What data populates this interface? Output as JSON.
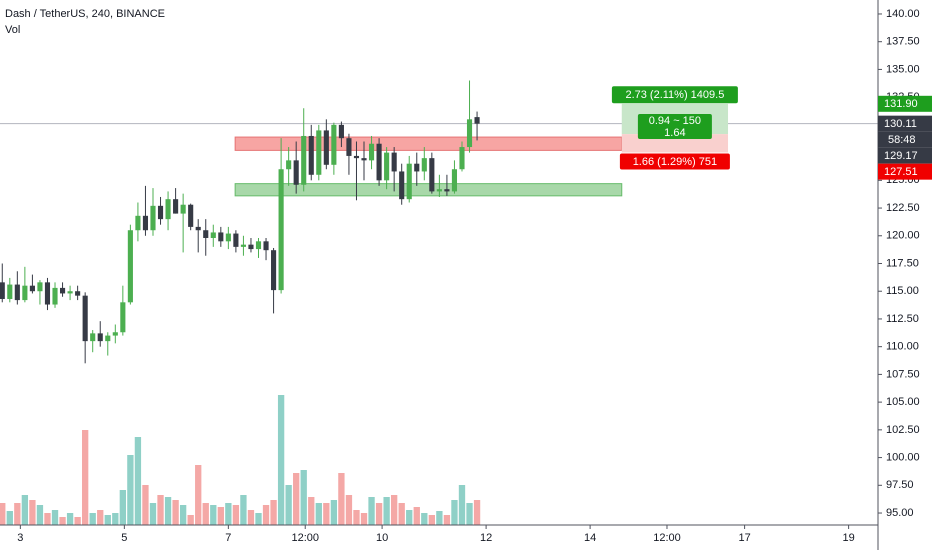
{
  "chart_data": {
    "type": "candlestick",
    "title": "Dash / TetherUS, 240, BINANCE",
    "volume_title": "Vol",
    "up_color": "#4caf50",
    "down_color": "#363a45",
    "volume_up_color": "#8fd0c7",
    "volume_down_color": "#f4a8a6",
    "x": [
      0,
      1,
      2,
      3,
      4,
      5,
      6,
      7,
      8,
      9,
      10,
      11,
      12,
      13,
      14,
      15,
      16,
      17,
      18,
      19,
      20,
      21,
      22,
      23,
      24,
      25,
      26,
      27,
      28,
      29,
      30,
      31,
      32,
      33,
      34,
      35,
      36,
      37,
      38,
      39,
      40,
      41,
      42,
      43,
      44,
      45,
      46,
      47,
      48,
      49,
      50,
      51,
      52,
      53,
      54,
      55,
      56,
      57,
      58,
      59,
      60,
      61,
      62,
      63
    ],
    "open": [
      115.8,
      114.3,
      115.6,
      114.2,
      115.5,
      115.0,
      115.8,
      113.8,
      115.3,
      114.8,
      115.0,
      114.6,
      110.5,
      111.2,
      110.5,
      111.0,
      111.3,
      114.0,
      120.5,
      121.8,
      120.5,
      122.7,
      121.5,
      123.3,
      122.0,
      122.8,
      120.8,
      120.5,
      119.8,
      120.3,
      119.5,
      120.2,
      119.0,
      119.2,
      118.8,
      119.5,
      118.7,
      115.1,
      126.0,
      126.8,
      124.6,
      129.0,
      125.5,
      129.5,
      126.4,
      130.0,
      128.8,
      127.2,
      127.0,
      126.8,
      128.3,
      125.0,
      127.5,
      125.8,
      123.3,
      126.5,
      125.8,
      127.0,
      124.0,
      124.2,
      124.0,
      126.0,
      128.0,
      130.7
    ],
    "high": [
      117.5,
      116.2,
      116.8,
      117.2,
      116.5,
      116.0,
      116.2,
      115.8,
      115.8,
      115.5,
      115.5,
      114.9,
      111.5,
      112.3,
      111.3,
      112.0,
      115.5,
      121.0,
      123.0,
      124.5,
      124.3,
      123.5,
      124.0,
      124.3,
      123.8,
      122.9,
      121.5,
      121.5,
      121.0,
      120.8,
      120.8,
      120.5,
      120.0,
      119.8,
      119.8,
      119.8,
      118.9,
      128.8,
      128.0,
      128.5,
      131.5,
      130.0,
      130.0,
      130.5,
      130.2,
      130.3,
      129.2,
      128.5,
      128.5,
      129.0,
      128.8,
      128.0,
      128.0,
      126.5,
      127.2,
      127.5,
      128.0,
      127.5,
      125.5,
      125.5,
      126.8,
      128.5,
      134.0,
      131.2
    ],
    "low": [
      114.0,
      114.0,
      113.8,
      114.0,
      114.8,
      113.8,
      113.3,
      113.5,
      114.5,
      114.2,
      114.2,
      108.5,
      109.5,
      110.0,
      109.2,
      110.3,
      111.0,
      113.8,
      119.5,
      120.0,
      120.0,
      121.0,
      120.5,
      122.0,
      118.5,
      120.5,
      118.5,
      118.2,
      119.0,
      119.0,
      118.8,
      118.5,
      118.2,
      118.5,
      118.0,
      117.8,
      113.0,
      114.8,
      124.5,
      123.8,
      124.0,
      125.0,
      125.0,
      126.0,
      125.5,
      128.0,
      125.5,
      123.2,
      125.0,
      126.0,
      124.5,
      124.2,
      124.0,
      122.8,
      123.0,
      124.5,
      125.0,
      123.8,
      123.5,
      123.6,
      123.8,
      125.8,
      127.5,
      128.6
    ],
    "close": [
      114.3,
      115.6,
      114.2,
      115.5,
      115.0,
      115.8,
      113.8,
      115.3,
      114.8,
      115.0,
      114.6,
      110.5,
      111.2,
      110.5,
      111.0,
      111.3,
      114.0,
      120.5,
      121.8,
      120.5,
      122.7,
      121.5,
      123.3,
      122.0,
      122.8,
      120.8,
      120.5,
      119.8,
      120.3,
      119.5,
      120.2,
      119.0,
      119.2,
      118.8,
      119.5,
      118.7,
      115.1,
      126.0,
      126.8,
      124.6,
      129.0,
      125.5,
      129.5,
      126.4,
      130.0,
      128.8,
      127.2,
      127.0,
      126.8,
      128.3,
      125.0,
      127.5,
      125.8,
      123.3,
      126.5,
      125.8,
      127.0,
      124.0,
      124.2,
      124.0,
      126.0,
      128.0,
      130.5,
      130.11
    ],
    "volume": [
      22,
      14,
      22,
      30,
      25,
      20,
      12,
      15,
      8,
      12,
      8,
      95,
      12,
      15,
      10,
      12,
      35,
      70,
      88,
      40,
      22,
      30,
      28,
      25,
      20,
      10,
      60,
      22,
      20,
      18,
      22,
      20,
      30,
      15,
      12,
      20,
      25,
      130,
      40,
      52,
      55,
      28,
      22,
      22,
      25,
      52,
      30,
      15,
      12,
      28,
      22,
      28,
      30,
      22,
      15,
      18,
      12,
      10,
      14,
      10,
      25,
      40,
      22,
      25
    ],
    "volume_ylim": [
      0,
      525
    ],
    "xlim": [
      -0.3,
      116.2
    ],
    "xticks": [
      {
        "value": 2.4,
        "label": "3"
      },
      {
        "value": 16.2,
        "label": "5"
      },
      {
        "value": 30.0,
        "label": "7"
      },
      {
        "value": 40.2,
        "label": "12:00"
      },
      {
        "value": 50.4,
        "label": "10"
      },
      {
        "value": 64.2,
        "label": "12"
      },
      {
        "value": 78.0,
        "label": "14"
      },
      {
        "value": 88.2,
        "label": "12:00"
      },
      {
        "value": 98.5,
        "label": "17"
      },
      {
        "value": 112.3,
        "label": "19"
      }
    ],
    "ylim": [
      93.92,
      141.26
    ],
    "yticks": [
      {
        "value": 140,
        "label": "140.00"
      },
      {
        "value": 137.5,
        "label": "137.50"
      },
      {
        "value": 135,
        "label": "135.00"
      },
      {
        "value": 132.5,
        "label": "132.50"
      },
      {
        "value": 130,
        "label": "130.00"
      },
      {
        "value": 127.5,
        "label": "127.50"
      },
      {
        "value": 125,
        "label": "125.00"
      },
      {
        "value": 122.5,
        "label": "122.50"
      },
      {
        "value": 120,
        "label": "120.00"
      },
      {
        "value": 117.5,
        "label": "117.50"
      },
      {
        "value": 115,
        "label": "115.00"
      },
      {
        "value": 112.5,
        "label": "112.50"
      },
      {
        "value": 110,
        "label": "110.00"
      },
      {
        "value": 107.5,
        "label": "107.50"
      },
      {
        "value": 105,
        "label": "105.00"
      },
      {
        "value": 102.5,
        "label": "102.50"
      },
      {
        "value": 100,
        "label": "100.00"
      },
      {
        "value": 97.5,
        "label": "97.50"
      },
      {
        "value": 95,
        "label": "95.00"
      }
    ],
    "grid": false,
    "zones": [
      {
        "low": 127.7,
        "high": 128.9,
        "x_start": 30.9,
        "x_end": 82.2,
        "color": "#f7a5a3",
        "stroke": "#e57373"
      },
      {
        "low": 123.6,
        "high": 124.7,
        "x_start": 30.9,
        "x_end": 82.2,
        "color": "#a8d8a9",
        "stroke": "#66bb6a"
      }
    ],
    "position": {
      "target": 131.9,
      "entry": 129.17,
      "stop": 127.51,
      "x_start": 82.2,
      "x_end": 96.3,
      "profit_color": "#c8e6c9",
      "loss_color": "#f9d0ce",
      "target_label": "2.73 (2.11%) 1409.5",
      "ratio_label": "0.94 ~ 150",
      "ratio_value_label": "1.64",
      "stop_label": "1.66 (1.29%) 751"
    },
    "price_labels": [
      {
        "value": 131.9,
        "label": "131.90",
        "color": "#1e9e1e"
      },
      {
        "value": 130.11,
        "label": "130.11",
        "color": "#363a45"
      },
      {
        "value": 129.17,
        "label": "129.17",
        "color": "#363a45"
      },
      {
        "value": 127.51,
        "label": "127.51",
        "color": "#f00000"
      }
    ],
    "countdown": "58:48"
  }
}
